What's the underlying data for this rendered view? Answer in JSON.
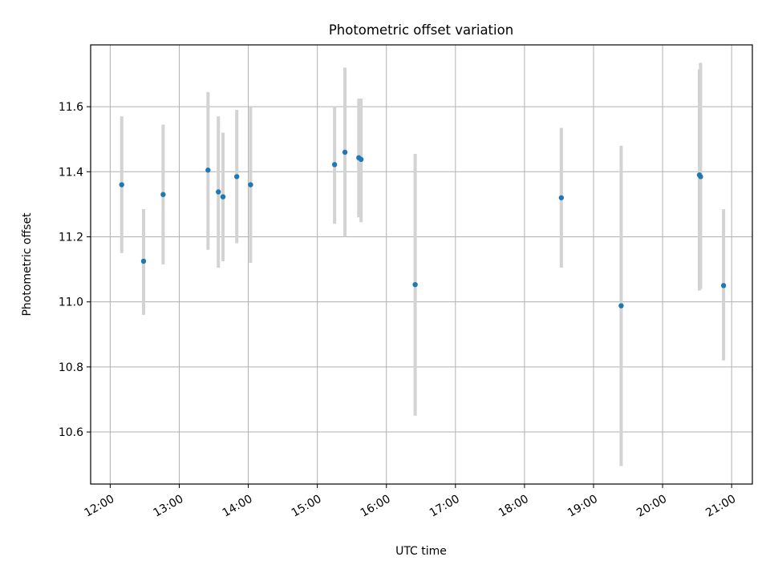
{
  "chart_data": {
    "type": "scatter",
    "title": "Photometric offset variation",
    "xlabel": "UTC time",
    "ylabel": "Photometric offset",
    "x_axis_type": "time",
    "xlim": [
      "11:43",
      "21:18"
    ],
    "ylim": [
      10.44,
      11.79
    ],
    "x_ticks": [
      "12:00",
      "13:00",
      "14:00",
      "15:00",
      "16:00",
      "17:00",
      "18:00",
      "19:00",
      "20:00",
      "21:00"
    ],
    "y_ticks": [
      10.6,
      10.8,
      11.0,
      11.2,
      11.4,
      11.6
    ],
    "y_tick_labels": [
      "10.6",
      "10.8",
      "11.0",
      "11.2",
      "11.4",
      "11.6"
    ],
    "grid": true,
    "legend": "none",
    "colors": {
      "point": "#1f77b4",
      "errorbar": "#d3d3d3",
      "grid": "#b0b0b0"
    },
    "points": [
      {
        "x": "12:10",
        "y": 11.36,
        "ylo": 11.15,
        "yhi": 11.57
      },
      {
        "x": "12:29",
        "y": 11.125,
        "ylo": 10.96,
        "yhi": 11.285
      },
      {
        "x": "12:46",
        "y": 11.33,
        "ylo": 11.115,
        "yhi": 11.545
      },
      {
        "x": "13:25",
        "y": 11.405,
        "ylo": 11.16,
        "yhi": 11.645
      },
      {
        "x": "13:34",
        "y": 11.338,
        "ylo": 11.105,
        "yhi": 11.57
      },
      {
        "x": "13:38",
        "y": 11.323,
        "ylo": 11.125,
        "yhi": 11.52
      },
      {
        "x": "13:50",
        "y": 11.385,
        "ylo": 11.18,
        "yhi": 11.59
      },
      {
        "x": "14:02",
        "y": 11.36,
        "ylo": 11.12,
        "yhi": 11.6
      },
      {
        "x": "15:15",
        "y": 11.422,
        "ylo": 11.24,
        "yhi": 11.6
      },
      {
        "x": "15:24",
        "y": 11.46,
        "ylo": 11.2,
        "yhi": 11.72
      },
      {
        "x": "15:36",
        "y": 11.443,
        "ylo": 11.26,
        "yhi": 11.625
      },
      {
        "x": "15:38",
        "y": 11.438,
        "ylo": 11.245,
        "yhi": 11.625
      },
      {
        "x": "16:25",
        "y": 11.053,
        "ylo": 10.65,
        "yhi": 11.455
      },
      {
        "x": "18:32",
        "y": 11.32,
        "ylo": 11.105,
        "yhi": 11.535
      },
      {
        "x": "19:24",
        "y": 10.988,
        "ylo": 10.495,
        "yhi": 11.48
      },
      {
        "x": "20:32",
        "y": 11.39,
        "ylo": 11.035,
        "yhi": 11.715
      },
      {
        "x": "20:33",
        "y": 11.385,
        "ylo": 11.04,
        "yhi": 11.735
      },
      {
        "x": "20:53",
        "y": 11.05,
        "ylo": 10.82,
        "yhi": 11.285
      }
    ]
  }
}
